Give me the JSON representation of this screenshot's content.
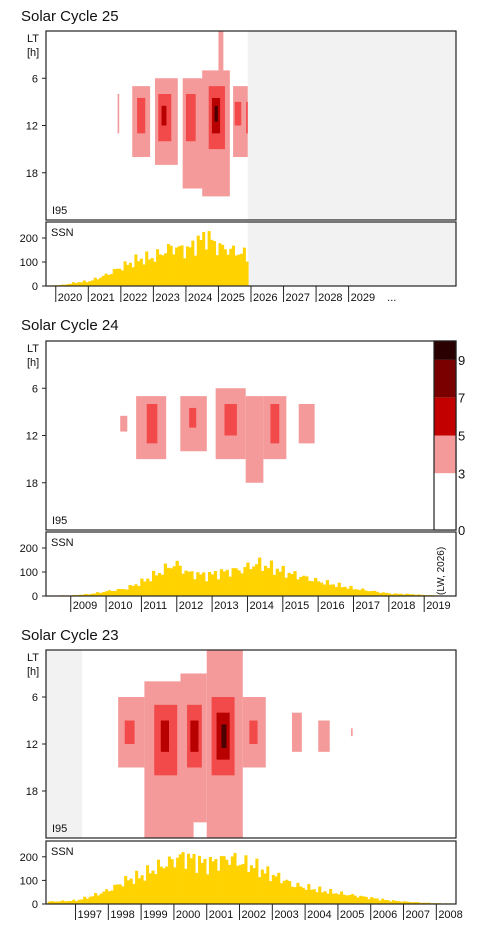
{
  "scale": {
    "ticks": [
      "9",
      "7",
      "5",
      "3",
      "0"
    ],
    "note": "(LW, 2026)",
    "colors": [
      "#ffffff",
      "#f49a9a",
      "#ff3a3a",
      "#c20000",
      "#7a0000",
      "#2a0000"
    ]
  },
  "colors": {
    "ssn": "#ffd200",
    "future": "#f2f2f2",
    "frame": "#222222"
  },
  "chart_data": [
    {
      "type": "heatmap",
      "title": "Solar Cycle 25",
      "heat_label": "I95",
      "heat_ylabel": [
        "LT",
        "[h]"
      ],
      "heat_ylim": [
        0,
        24
      ],
      "heat_yticks": [
        6,
        12,
        18
      ],
      "ssn_label": "SSN",
      "ssn_ylim": [
        0,
        250
      ],
      "ssn_yticks": [
        0,
        100,
        200
      ],
      "x_start": 2019.7,
      "x_end": 2032.3,
      "future_from": 2025.9,
      "xticks": [
        "2020",
        "2021",
        "2022",
        "2023",
        "2024",
        "2025",
        "2026",
        "2027",
        "2028",
        "2029"
      ],
      "xticks_extra": "...",
      "ssn": {
        "points": [
          [
            2019.75,
            2
          ],
          [
            2020.2,
            5
          ],
          [
            2020.6,
            15
          ],
          [
            2021.0,
            20
          ],
          [
            2021.5,
            45
          ],
          [
            2022.0,
            80
          ],
          [
            2022.5,
            110
          ],
          [
            2023.0,
            120
          ],
          [
            2023.5,
            160
          ],
          [
            2024.0,
            150
          ],
          [
            2024.3,
            180
          ],
          [
            2024.6,
            210
          ],
          [
            2024.9,
            165
          ],
          [
            2025.3,
            150
          ],
          [
            2025.7,
            135
          ],
          [
            2025.9,
            120
          ]
        ]
      },
      "activity": [
        {
          "t0": 2021.9,
          "t1": 2021.95,
          "h0": 8,
          "h1": 13,
          "v": 3
        },
        {
          "t0": 2022.35,
          "t1": 2022.9,
          "h0": 7,
          "h1": 16,
          "v": 3
        },
        {
          "t0": 2022.5,
          "t1": 2022.75,
          "h0": 8.5,
          "h1": 13,
          "v": 5
        },
        {
          "t0": 2023.05,
          "t1": 2023.75,
          "h0": 6,
          "h1": 17,
          "v": 3
        },
        {
          "t0": 2023.15,
          "t1": 2023.55,
          "h0": 8,
          "h1": 14,
          "v": 5
        },
        {
          "t0": 2023.25,
          "t1": 2023.4,
          "h0": 9.5,
          "h1": 12,
          "v": 7
        },
        {
          "t0": 2023.9,
          "t1": 2024.65,
          "h0": 6,
          "h1": 20,
          "v": 3
        },
        {
          "t0": 2024.0,
          "t1": 2024.3,
          "h0": 8,
          "h1": 14,
          "v": 5
        },
        {
          "t0": 2024.5,
          "t1": 2025.35,
          "h0": 5,
          "h1": 21,
          "v": 3
        },
        {
          "t0": 2024.7,
          "t1": 2025.2,
          "h0": 7,
          "h1": 15,
          "v": 5
        },
        {
          "t0": 2024.8,
          "t1": 2025.05,
          "h0": 8.5,
          "h1": 13,
          "v": 7
        },
        {
          "t0": 2024.88,
          "t1": 2024.98,
          "h0": 9.5,
          "h1": 11.5,
          "v": 9
        },
        {
          "t0": 2025.0,
          "t1": 2025.15,
          "h0": 0,
          "h1": 5,
          "v": 3
        },
        {
          "t0": 2025.45,
          "t1": 2025.9,
          "h0": 7,
          "h1": 16,
          "v": 3
        },
        {
          "t0": 2025.5,
          "t1": 2025.7,
          "h0": 9,
          "h1": 12,
          "v": 5
        },
        {
          "t0": 2025.85,
          "t1": 2025.9,
          "h0": 9,
          "h1": 13,
          "v": 5
        }
      ]
    },
    {
      "type": "heatmap",
      "title": "Solar Cycle 24",
      "heat_label": "I95",
      "heat_ylabel": [
        "LT",
        "[h]"
      ],
      "heat_ylim": [
        0,
        24
      ],
      "heat_yticks": [
        6,
        12,
        18
      ],
      "ssn_label": "SSN",
      "ssn_ylim": [
        0,
        250
      ],
      "ssn_yticks": [
        0,
        100,
        200
      ],
      "x_start": 2008.3,
      "x_end": 2019.9,
      "future_from": null,
      "xticks": [
        "2009",
        "2010",
        "2011",
        "2012",
        "2013",
        "2014",
        "2015",
        "2016",
        "2017",
        "2018",
        "2019"
      ],
      "ssn": {
        "points": [
          [
            2008.3,
            2
          ],
          [
            2009.0,
            3
          ],
          [
            2009.5,
            8
          ],
          [
            2010.0,
            20
          ],
          [
            2010.5,
            30
          ],
          [
            2011.0,
            60
          ],
          [
            2011.5,
            100
          ],
          [
            2011.9,
            135
          ],
          [
            2012.3,
            95
          ],
          [
            2012.8,
            85
          ],
          [
            2013.3,
            100
          ],
          [
            2013.8,
            110
          ],
          [
            2014.2,
            135
          ],
          [
            2014.6,
            120
          ],
          [
            2015.0,
            100
          ],
          [
            2015.5,
            80
          ],
          [
            2016.0,
            60
          ],
          [
            2016.5,
            45
          ],
          [
            2017.0,
            30
          ],
          [
            2017.5,
            20
          ],
          [
            2018.0,
            10
          ],
          [
            2018.5,
            8
          ],
          [
            2019.0,
            4
          ],
          [
            2019.5,
            2
          ],
          [
            2019.85,
            1
          ]
        ]
      },
      "activity": [
        {
          "t0": 2010.4,
          "t1": 2010.6,
          "h0": 9.5,
          "h1": 11.5,
          "v": 3
        },
        {
          "t0": 2010.85,
          "t1": 2011.7,
          "h0": 7,
          "h1": 15,
          "v": 3
        },
        {
          "t0": 2011.15,
          "t1": 2011.45,
          "h0": 8,
          "h1": 13,
          "v": 5
        },
        {
          "t0": 2012.1,
          "t1": 2012.85,
          "h0": 7,
          "h1": 14,
          "v": 3
        },
        {
          "t0": 2012.35,
          "t1": 2012.55,
          "h0": 8.5,
          "h1": 11,
          "v": 5
        },
        {
          "t0": 2013.1,
          "t1": 2013.95,
          "h0": 6,
          "h1": 15,
          "v": 3
        },
        {
          "t0": 2013.35,
          "t1": 2013.7,
          "h0": 8,
          "h1": 12,
          "v": 5
        },
        {
          "t0": 2013.95,
          "t1": 2014.45,
          "h0": 7,
          "h1": 18,
          "v": 3
        },
        {
          "t0": 2014.45,
          "t1": 2015.1,
          "h0": 7,
          "h1": 15,
          "v": 3
        },
        {
          "t0": 2014.65,
          "t1": 2014.9,
          "h0": 8,
          "h1": 13,
          "v": 5
        },
        {
          "t0": 2015.45,
          "t1": 2015.9,
          "h0": 8,
          "h1": 13,
          "v": 3
        }
      ]
    },
    {
      "type": "heatmap",
      "title": "Solar Cycle 23",
      "heat_label": "I95",
      "heat_ylabel": [
        "LT",
        "[h]"
      ],
      "heat_ylim": [
        0,
        24
      ],
      "heat_yticks": [
        6,
        12,
        18
      ],
      "ssn_label": "SSN",
      "ssn_ylim": [
        0,
        250
      ],
      "ssn_yticks": [
        0,
        100,
        200
      ],
      "x_start": 1996.1,
      "x_end": 2008.6,
      "future_from": null,
      "past_to": 1997.2,
      "xticks": [
        "1997",
        "1998",
        "1999",
        "2000",
        "2001",
        "2002",
        "2003",
        "2004",
        "2005",
        "2006",
        "2007",
        "2008"
      ],
      "ssn": {
        "points": [
          [
            1996.15,
            10
          ],
          [
            1996.5,
            12
          ],
          [
            1997.0,
            15
          ],
          [
            1997.5,
            35
          ],
          [
            1998.0,
            60
          ],
          [
            1998.5,
            100
          ],
          [
            1999.0,
            120
          ],
          [
            1999.4,
            150
          ],
          [
            1999.8,
            175
          ],
          [
            2000.2,
            200
          ],
          [
            2000.5,
            190
          ],
          [
            2000.9,
            170
          ],
          [
            2001.3,
            180
          ],
          [
            2001.7,
            195
          ],
          [
            2002.0,
            175
          ],
          [
            2002.4,
            160
          ],
          [
            2002.8,
            130
          ],
          [
            2003.2,
            110
          ],
          [
            2003.6,
            80
          ],
          [
            2004.0,
            70
          ],
          [
            2004.5,
            55
          ],
          [
            2005.0,
            45
          ],
          [
            2005.5,
            35
          ],
          [
            2006.0,
            25
          ],
          [
            2006.5,
            15
          ],
          [
            2007.0,
            10
          ],
          [
            2007.5,
            6
          ],
          [
            2008.0,
            3
          ],
          [
            2008.55,
            2
          ]
        ]
      },
      "activity": [
        {
          "t0": 1998.3,
          "t1": 1999.1,
          "h0": 6,
          "h1": 15,
          "v": 3
        },
        {
          "t0": 1998.5,
          "t1": 1998.8,
          "h0": 9,
          "h1": 12,
          "v": 5
        },
        {
          "t0": 1999.1,
          "t1": 2000.6,
          "h0": 4,
          "h1": 24,
          "v": 3
        },
        {
          "t0": 1999.4,
          "t1": 2000.1,
          "h0": 7,
          "h1": 16,
          "v": 5
        },
        {
          "t0": 1999.6,
          "t1": 1999.85,
          "h0": 9,
          "h1": 13,
          "v": 7
        },
        {
          "t0": 2000.2,
          "t1": 2001.0,
          "h0": 3,
          "h1": 22,
          "v": 3
        },
        {
          "t0": 2000.4,
          "t1": 2000.85,
          "h0": 7,
          "h1": 15,
          "v": 5
        },
        {
          "t0": 2000.5,
          "t1": 2000.75,
          "h0": 9,
          "h1": 13,
          "v": 7
        },
        {
          "t0": 2001.0,
          "t1": 2002.1,
          "h0": 0,
          "h1": 24,
          "v": 3
        },
        {
          "t0": 2001.15,
          "t1": 2001.85,
          "h0": 6,
          "h1": 16,
          "v": 5
        },
        {
          "t0": 2001.3,
          "t1": 2001.7,
          "h0": 8,
          "h1": 14,
          "v": 7
        },
        {
          "t0": 2001.45,
          "t1": 2001.6,
          "h0": 9.5,
          "h1": 12.5,
          "v": 9
        },
        {
          "t0": 2002.1,
          "t1": 2002.8,
          "h0": 6,
          "h1": 15,
          "v": 3
        },
        {
          "t0": 2002.3,
          "t1": 2002.55,
          "h0": 9,
          "h1": 12,
          "v": 5
        },
        {
          "t0": 2003.6,
          "t1": 2003.9,
          "h0": 8,
          "h1": 13,
          "v": 3
        },
        {
          "t0": 2004.4,
          "t1": 2004.75,
          "h0": 9,
          "h1": 13,
          "v": 3
        },
        {
          "t0": 2005.4,
          "t1": 2005.45,
          "h0": 10,
          "h1": 11,
          "v": 3
        }
      ]
    }
  ]
}
